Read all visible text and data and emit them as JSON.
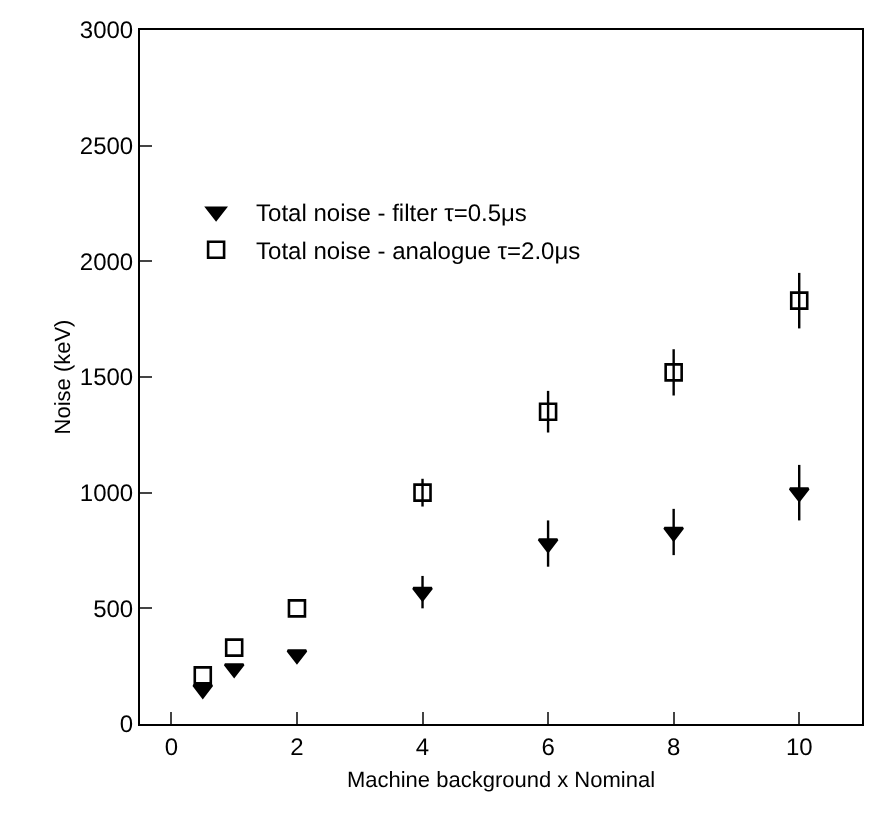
{
  "chart_data": {
    "type": "scatter",
    "xlabel": "Machine background x Nominal",
    "ylabel": "Noise (keV)",
    "x": [
      0.5,
      1,
      2,
      4,
      6,
      8,
      10
    ],
    "series": [
      {
        "name": "Total noise - filter τ=0.5μs",
        "color": "#000000",
        "marker": "triangle",
        "values": [
          150,
          240,
          300,
          570,
          780,
          830,
          1000
        ],
        "errors": [
          null,
          null,
          null,
          70,
          100,
          100,
          120
        ]
      },
      {
        "name": "Total noise - analogue τ=2.0μs",
        "color": "#000000",
        "marker": "square",
        "values": [
          210,
          330,
          500,
          1000,
          1350,
          1520,
          1830
        ],
        "errors": [
          null,
          null,
          null,
          60,
          90,
          100,
          120
        ]
      }
    ],
    "xlim": [
      -0.5,
      11
    ],
    "xticks": [
      0,
      2,
      4,
      6,
      8,
      10
    ],
    "ylim": [
      0,
      3000
    ],
    "yticks": [
      0,
      500,
      1000,
      1500,
      2000,
      2500,
      3000
    ],
    "grid": false,
    "legend": "top left"
  }
}
